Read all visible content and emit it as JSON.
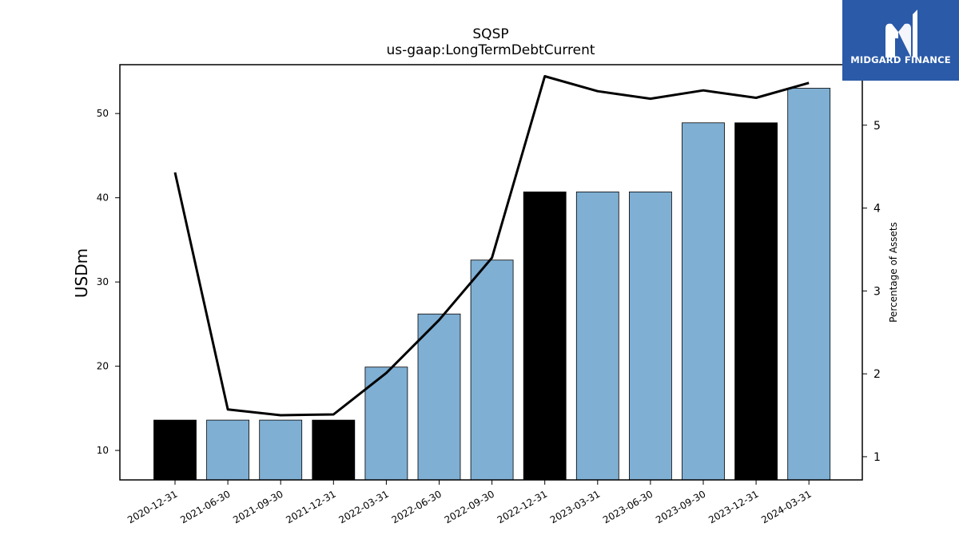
{
  "chart_data": {
    "type": "bar",
    "title": "SQSP",
    "subtitle": "us-gaap:LongTermDebtCurrent",
    "ylabel": "USDm",
    "y2label": "Percentage of Assets",
    "categories": [
      "2020-12-31",
      "2021-06-30",
      "2021-09-30",
      "2021-12-31",
      "2022-03-31",
      "2022-06-30",
      "2022-09-30",
      "2022-12-31",
      "2023-03-31",
      "2023-06-30",
      "2023-09-30",
      "2023-12-31",
      "2024-03-31"
    ],
    "series": [
      {
        "type": "bar",
        "values": [
          13.6,
          13.6,
          13.6,
          13.6,
          19.9,
          26.2,
          32.6,
          40.7,
          40.7,
          40.7,
          48.9,
          48.9,
          53.0
        ],
        "highlight": [
          true,
          false,
          false,
          true,
          false,
          false,
          false,
          true,
          false,
          false,
          false,
          true,
          false
        ]
      },
      {
        "type": "line",
        "axis": "right",
        "values": [
          4.43,
          1.57,
          1.5,
          1.51,
          2.01,
          2.65,
          3.4,
          5.59,
          5.41,
          5.32,
          5.42,
          5.33,
          5.51
        ]
      }
    ],
    "ylim": [
      6.5,
      55.8
    ],
    "y2lim": [
      0.72,
      5.73
    ],
    "yticks": [
      "10",
      "20",
      "30",
      "40",
      "50"
    ],
    "y2ticks": [
      "1",
      "2",
      "3",
      "4",
      "5"
    ],
    "grid": false,
    "colors": {
      "bar": "#7fafd3",
      "bar_highlight": "#000000",
      "line": "#000000",
      "edge": "#000000"
    }
  },
  "logo": {
    "text": "MIDGARD FINANCE",
    "background": "#2a5aa8"
  }
}
